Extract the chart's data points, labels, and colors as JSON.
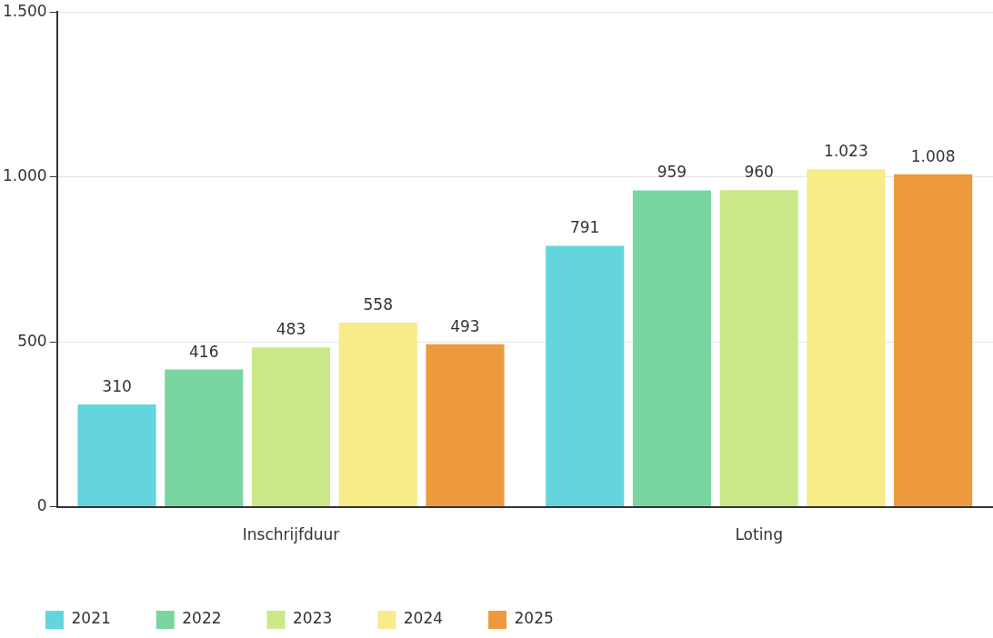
{
  "chart_data": {
    "type": "bar",
    "categories": [
      "Inschrijfduur",
      "Loting"
    ],
    "series": [
      {
        "name": "2021",
        "color": "#64d5dc",
        "values": [
          310,
          791
        ],
        "value_labels": [
          "310",
          "791"
        ]
      },
      {
        "name": "2022",
        "color": "#7ad6a0",
        "values": [
          416,
          959
        ],
        "value_labels": [
          "416",
          "959"
        ]
      },
      {
        "name": "2023",
        "color": "#cce98a",
        "values": [
          483,
          960
        ],
        "value_labels": [
          "483",
          "960"
        ]
      },
      {
        "name": "2024",
        "color": "#f7eb8a",
        "values": [
          558,
          1023
        ],
        "value_labels": [
          "558",
          "1.023"
        ]
      },
      {
        "name": "2025",
        "color": "#ed9a3e",
        "values": [
          493,
          1008
        ],
        "value_labels": [
          "493",
          "1.008"
        ]
      }
    ],
    "ylim": [
      0,
      1500
    ],
    "yticks": [
      0,
      {
        "value": 500,
        "label": "500"
      },
      {
        "value": 1000,
        "label": "1.000"
      },
      {
        "value": 1500,
        "label": "1.500"
      }
    ],
    "grid": "y",
    "legend": "bottom left"
  }
}
